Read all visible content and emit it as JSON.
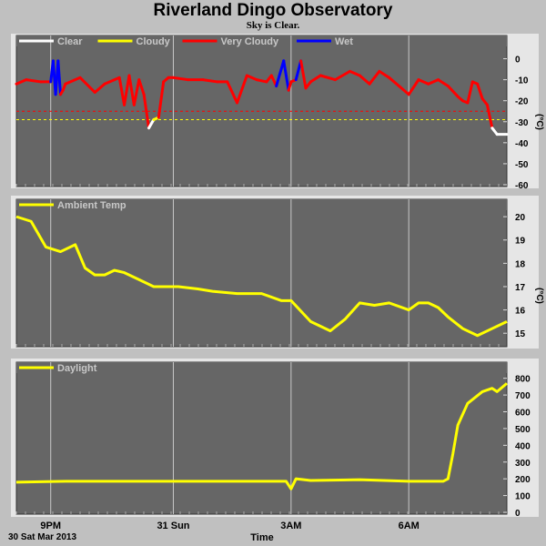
{
  "header": {
    "title": "Riverland Dingo Observatory",
    "subtitle": "Sky is Clear."
  },
  "footer": {
    "date_label": "30 Sat Mar 2013",
    "x_axis_label": "Time"
  },
  "colors": {
    "background": "#c0c0c0",
    "plot_bg": "#666666",
    "grid": "#c8c8c8",
    "clear": "#ffffff",
    "cloudy": "#ffff00",
    "very_cloudy": "#ff0000",
    "wet": "#0000ff",
    "ambient": "#ffff00",
    "daylight": "#ffff00"
  },
  "chart_data": [
    {
      "type": "line",
      "panel": "sky",
      "legend": [
        "Clear",
        "Cloudy",
        "Very Cloudy",
        "Wet"
      ],
      "legend_placement": "top-left",
      "ylabel": "(°C)",
      "ylim": [
        -60,
        5
      ],
      "yticks": [
        0,
        -10,
        -20,
        -30,
        -40,
        -50,
        -60
      ],
      "threshold_lines": [
        {
          "value": -25,
          "color": "#ff0000"
        },
        {
          "value": -29,
          "color": "#ffff00"
        }
      ],
      "x": [
        0,
        0.02,
        0.05,
        0.07,
        0.075,
        0.08,
        0.085,
        0.09,
        0.095,
        0.1,
        0.13,
        0.16,
        0.18,
        0.2,
        0.21,
        0.22,
        0.23,
        0.24,
        0.25,
        0.26,
        0.27,
        0.28,
        0.29,
        0.3,
        0.31,
        0.32,
        0.35,
        0.38,
        0.41,
        0.43,
        0.45,
        0.47,
        0.49,
        0.51,
        0.52,
        0.53,
        0.545,
        0.555,
        0.56,
        0.57,
        0.58,
        0.59,
        0.6,
        0.62,
        0.65,
        0.68,
        0.7,
        0.72,
        0.74,
        0.76,
        0.78,
        0.8,
        0.82,
        0.84,
        0.86,
        0.88,
        0.9,
        0.91,
        0.92,
        0.93,
        0.94,
        0.95,
        0.96,
        0.97,
        0.98,
        1.0
      ],
      "y": [
        -12,
        -10,
        -11,
        -11,
        -1,
        -17,
        -1,
        -17,
        -15,
        -12,
        -9,
        -16,
        -12,
        -10,
        -9,
        -22,
        -8,
        -22,
        -10,
        -17,
        -33,
        -29,
        -28,
        -11,
        -9,
        -9,
        -10,
        -10,
        -11,
        -11,
        -21,
        -8,
        -10,
        -11,
        -8,
        -13,
        -1,
        -15,
        -11,
        -10,
        -1,
        -14,
        -11,
        -8,
        -10,
        -6,
        -8,
        -12,
        -6,
        -9,
        -13,
        -17,
        -10,
        -12,
        -10,
        -13,
        -18,
        -20,
        -21,
        -11,
        -12,
        -19,
        -22,
        -33,
        -36,
        -36
      ],
      "category": [
        "vc",
        "vc",
        "vc",
        "vc",
        "wet",
        "wet",
        "wet",
        "wet",
        "vc",
        "vc",
        "vc",
        "vc",
        "vc",
        "vc",
        "vc",
        "vc",
        "vc",
        "vc",
        "vc",
        "vc",
        "vc",
        "clear",
        "cloudy",
        "vc",
        "vc",
        "vc",
        "vc",
        "vc",
        "vc",
        "vc",
        "vc",
        "vc",
        "vc",
        "vc",
        "vc",
        "vc",
        "wet",
        "wet",
        "vc",
        "vc",
        "wet",
        "vc",
        "vc",
        "vc",
        "vc",
        "vc",
        "vc",
        "vc",
        "vc",
        "vc",
        "vc",
        "vc",
        "vc",
        "vc",
        "vc",
        "vc",
        "vc",
        "vc",
        "vc",
        "vc",
        "vc",
        "vc",
        "vc",
        "vc",
        "clear",
        "clear"
      ]
    },
    {
      "type": "line",
      "panel": "ambient",
      "legend": [
        "Ambient Temp"
      ],
      "legend_placement": "top-left",
      "ylabel": "(°C)",
      "ylim": [
        14.5,
        20.2
      ],
      "yticks": [
        20,
        19,
        18,
        17,
        16,
        15
      ],
      "x": [
        0,
        0.03,
        0.06,
        0.09,
        0.12,
        0.14,
        0.16,
        0.18,
        0.2,
        0.22,
        0.25,
        0.28,
        0.3,
        0.33,
        0.37,
        0.4,
        0.45,
        0.5,
        0.54,
        0.56,
        0.6,
        0.64,
        0.67,
        0.7,
        0.73,
        0.76,
        0.8,
        0.82,
        0.84,
        0.86,
        0.88,
        0.91,
        0.94,
        0.97,
        1.0
      ],
      "y": [
        20,
        19.8,
        18.7,
        18.5,
        18.8,
        17.8,
        17.5,
        17.5,
        17.7,
        17.6,
        17.3,
        17,
        17,
        17,
        16.9,
        16.8,
        16.7,
        16.7,
        16.4,
        16.4,
        15.5,
        15.1,
        15.6,
        16.3,
        16.2,
        16.3,
        16.0,
        16.3,
        16.3,
        16.1,
        15.7,
        15.2,
        14.9,
        15.2,
        15.5
      ]
    },
    {
      "type": "line",
      "panel": "daylight",
      "legend": [
        "Daylight"
      ],
      "legend_placement": "top-left",
      "ylim": [
        0,
        820
      ],
      "yticks": [
        800,
        700,
        600,
        500,
        400,
        300,
        200,
        100,
        0
      ],
      "x": [
        0,
        0.1,
        0.2,
        0.3,
        0.4,
        0.5,
        0.55,
        0.56,
        0.57,
        0.6,
        0.7,
        0.8,
        0.85,
        0.87,
        0.88,
        0.89,
        0.9,
        0.92,
        0.95,
        0.97,
        0.98,
        1.0
      ],
      "y": [
        180,
        185,
        185,
        185,
        185,
        185,
        185,
        140,
        200,
        190,
        195,
        185,
        185,
        185,
        200,
        350,
        520,
        650,
        720,
        740,
        720,
        770
      ]
    }
  ],
  "x_axis": {
    "ticks": [
      {
        "label": "9PM",
        "pos": 0.07
      },
      {
        "label": "31 Sun",
        "pos": 0.32
      },
      {
        "label": "3AM",
        "pos": 0.56
      },
      {
        "label": "6AM",
        "pos": 0.8
      }
    ]
  }
}
